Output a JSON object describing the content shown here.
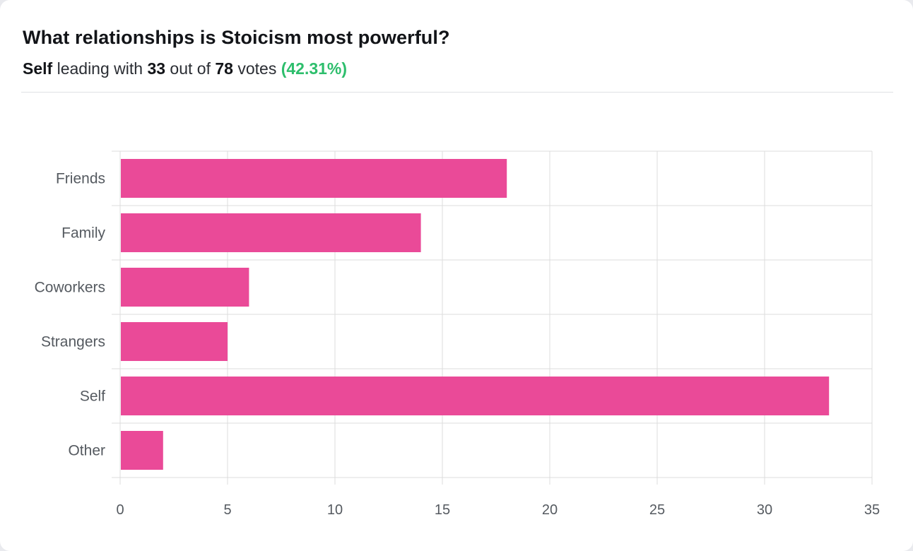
{
  "poll": {
    "title": "What relationships is Stoicism most powerful?",
    "leader": "Self",
    "leading_text": "leading with",
    "leader_votes": "33",
    "out_of_text": "out of",
    "total_votes": "78",
    "votes_text": "votes",
    "leader_pct": "(42.31%)"
  },
  "colors": {
    "bar": "#ea4a98",
    "grid": "#dcdcdc",
    "label": "#555a60",
    "percent": "#2dbe6c"
  },
  "chart_data": {
    "type": "bar",
    "orientation": "horizontal",
    "categories": [
      "Friends",
      "Family",
      "Coworkers",
      "Strangers",
      "Self",
      "Other"
    ],
    "values": [
      18,
      14,
      6,
      5,
      33,
      2
    ],
    "xlim": [
      0,
      35
    ],
    "xticks": [
      "0",
      "5",
      "10",
      "15",
      "20",
      "25",
      "30",
      "35"
    ],
    "grid": true,
    "legend": "none"
  }
}
